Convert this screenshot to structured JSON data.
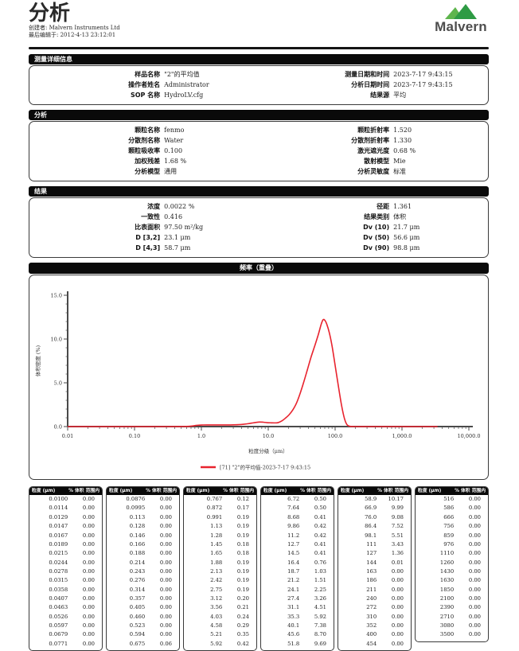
{
  "header": {
    "title": "分析",
    "created_label": "创建者:",
    "created_value": "Malvern Instruments Ltd",
    "edited_label": "最后编辑于:",
    "edited_value": "2012-4-13 23:12:01",
    "logo_text": "Malvern",
    "logo_green_light": "#5eb54d",
    "logo_green_dark": "#2e9b44"
  },
  "sections": [
    {
      "title": "测量详细信息",
      "rows": [
        {
          "l_label": "样品名称",
          "l_value": "\"2\"的平均值",
          "r_label": "测量日期和时间",
          "r_value": "2023-7-17 9:43:15"
        },
        {
          "l_label": "操作者姓名",
          "l_value": "Administrator",
          "r_label": "分析日期时间",
          "r_value": "2023-7-17 9:43:15"
        },
        {
          "l_label": "SOP 名称",
          "l_value": "HydroLV.cfg",
          "r_label": "结果源",
          "r_value": "平均"
        }
      ]
    },
    {
      "title": "分析",
      "rows": [
        {
          "l_label": "颗粒名称",
          "l_value": "fenmo",
          "r_label": "颗粒折射率",
          "r_value": "1.520"
        },
        {
          "l_label": "分散剂名称",
          "l_value": "Water",
          "r_label": "分散剂折射率",
          "r_value": "1.330"
        },
        {
          "l_label": "颗粒吸收率",
          "l_value": "0.100",
          "r_label": "激光遮光度",
          "r_value": "0.68 %"
        },
        {
          "l_label": "加权残差",
          "l_value": "1.68 %",
          "r_label": "散射模型",
          "r_value": "Mie"
        },
        {
          "l_label": "分析模型",
          "l_value": "通用",
          "r_label": "分析灵敏度",
          "r_value": "标准"
        }
      ]
    },
    {
      "title": "结果",
      "rows": [
        {
          "l_label": "浓度",
          "l_value": "0.0022 %",
          "r_label": "径距",
          "r_value": "1.361"
        },
        {
          "l_label": "一致性",
          "l_value": "0.416",
          "r_label": "结果类别",
          "r_value": "体积"
        },
        {
          "l_label": "比表面积",
          "l_value": "97.50 m²/kg",
          "r_label": "Dv (10)",
          "r_value": "21.7 μm"
        },
        {
          "l_label": "D [3,2]",
          "l_value": "23.1 μm",
          "r_label": "Dv (50)",
          "r_value": "56.6 μm"
        },
        {
          "l_label": "D [4,3]",
          "l_value": "58.7 μm",
          "r_label": "Dv (90)",
          "r_value": "98.8 μm"
        }
      ]
    }
  ],
  "chart_data": {
    "type": "line",
    "title": "频率（重叠）",
    "xlabel": "粒度分级（μm）",
    "ylabel": "体积密度 (%)",
    "x_scale": "log",
    "xlim": [
      0.01,
      10000
    ],
    "ylim": [
      0,
      15
    ],
    "grid": false,
    "legend_position": "bottom-center",
    "x_ticks": [
      {
        "v": 0.01,
        "label": "0.01"
      },
      {
        "v": 0.1,
        "label": "0.10"
      },
      {
        "v": 1,
        "label": "1.0"
      },
      {
        "v": 10,
        "label": "10.0"
      },
      {
        "v": 100,
        "label": "100.0"
      },
      {
        "v": 1000,
        "label": "1,000.0"
      },
      {
        "v": 10000,
        "label": "10,000.0"
      }
    ],
    "y_ticks": [
      {
        "v": 0,
        "label": "0.0"
      },
      {
        "v": 5,
        "label": "5.0"
      },
      {
        "v": 10,
        "label": "10.0"
      },
      {
        "v": 15,
        "label": "15.0"
      }
    ],
    "legend": "[71] \"2\"的平均值-2023-7-17 9:43:15",
    "line_color": "#e8232e",
    "series": [
      {
        "name": "\"2\"的平均值",
        "x": [
          0.01,
          0.1,
          0.3,
          0.5,
          0.6,
          0.7,
          0.8,
          0.9,
          1.0,
          1.2,
          1.5,
          1.9,
          2.4,
          3.0,
          3.6,
          4.3,
          5.0,
          5.7,
          6.5,
          7.4,
          8.4,
          9.5,
          11,
          12.5,
          14,
          16,
          18,
          20.5,
          23.5,
          26.5,
          30,
          34,
          38.5,
          43.5,
          49.5,
          56,
          62,
          66,
          70,
          75,
          82,
          90,
          100,
          112,
          125,
          138,
          148,
          158,
          170,
          185,
          200,
          500,
          1000,
          2000,
          3400
        ],
        "y": [
          0,
          0,
          0,
          0.01,
          0.02,
          0.05,
          0.11,
          0.16,
          0.18,
          0.19,
          0.19,
          0.19,
          0.19,
          0.2,
          0.22,
          0.27,
          0.33,
          0.4,
          0.47,
          0.52,
          0.5,
          0.45,
          0.43,
          0.42,
          0.45,
          0.65,
          0.95,
          1.35,
          1.95,
          2.7,
          3.8,
          5.1,
          6.5,
          7.9,
          9.2,
          10.5,
          11.7,
          12.2,
          12.15,
          11.7,
          10.7,
          9.2,
          7.0,
          4.6,
          2.4,
          0.9,
          0.3,
          0.08,
          0.02,
          0.01,
          0,
          0,
          0,
          0,
          0
        ]
      }
    ]
  },
  "tables": {
    "header_left": "粒度 (μm)",
    "header_right": "% 体积 范围内",
    "columns": [
      {
        "rows": [
          [
            "0.0100",
            "0.00"
          ],
          [
            "0.0114",
            "0.00"
          ],
          [
            "0.0129",
            "0.00"
          ],
          [
            "0.0147",
            "0.00"
          ],
          [
            "0.0167",
            "0.00"
          ],
          [
            "0.0189",
            "0.00"
          ],
          [
            "0.0215",
            "0.00"
          ],
          [
            "0.0244",
            "0.00"
          ],
          [
            "0.0278",
            "0.00"
          ],
          [
            "0.0315",
            "0.00"
          ],
          [
            "0.0358",
            "0.00"
          ],
          [
            "0.0407",
            "0.00"
          ],
          [
            "0.0463",
            "0.00"
          ],
          [
            "0.0526",
            "0.00"
          ],
          [
            "0.0597",
            "0.00"
          ],
          [
            "0.0679",
            "0.00"
          ],
          [
            "0.0771",
            "0.00"
          ]
        ]
      },
      {
        "rows": [
          [
            "0.0876",
            "0.00"
          ],
          [
            "0.0995",
            "0.00"
          ],
          [
            "0.113",
            "0.00"
          ],
          [
            "0.128",
            "0.00"
          ],
          [
            "0.146",
            "0.00"
          ],
          [
            "0.166",
            "0.00"
          ],
          [
            "0.188",
            "0.00"
          ],
          [
            "0.214",
            "0.00"
          ],
          [
            "0.243",
            "0.00"
          ],
          [
            "0.276",
            "0.00"
          ],
          [
            "0.314",
            "0.00"
          ],
          [
            "0.357",
            "0.00"
          ],
          [
            "0.405",
            "0.00"
          ],
          [
            "0.460",
            "0.00"
          ],
          [
            "0.523",
            "0.00"
          ],
          [
            "0.594",
            "0.00"
          ],
          [
            "0.675",
            "0.06"
          ]
        ]
      },
      {
        "rows": [
          [
            "0.767",
            "0.12"
          ],
          [
            "0.872",
            "0.17"
          ],
          [
            "0.991",
            "0.19"
          ],
          [
            "1.13",
            "0.19"
          ],
          [
            "1.28",
            "0.19"
          ],
          [
            "1.45",
            "0.18"
          ],
          [
            "1.65",
            "0.18"
          ],
          [
            "1.88",
            "0.19"
          ],
          [
            "2.13",
            "0.19"
          ],
          [
            "2.42",
            "0.19"
          ],
          [
            "2.75",
            "0.19"
          ],
          [
            "3.12",
            "0.20"
          ],
          [
            "3.56",
            "0.21"
          ],
          [
            "4.03",
            "0.24"
          ],
          [
            "4.58",
            "0.29"
          ],
          [
            "5.21",
            "0.35"
          ],
          [
            "5.92",
            "0.42"
          ]
        ]
      },
      {
        "rows": [
          [
            "6.72",
            "0.50"
          ],
          [
            "7.64",
            "0.50"
          ],
          [
            "8.68",
            "0.41"
          ],
          [
            "9.86",
            "0.42"
          ],
          [
            "11.2",
            "0.42"
          ],
          [
            "12.7",
            "0.41"
          ],
          [
            "14.5",
            "0.41"
          ],
          [
            "16.4",
            "0.76"
          ],
          [
            "18.7",
            "1.03"
          ],
          [
            "21.2",
            "1.51"
          ],
          [
            "24.1",
            "2.25"
          ],
          [
            "27.4",
            "3.26"
          ],
          [
            "31.1",
            "4.51"
          ],
          [
            "35.3",
            "5.92"
          ],
          [
            "40.1",
            "7.38"
          ],
          [
            "45.6",
            "8.70"
          ],
          [
            "51.8",
            "9.69"
          ]
        ]
      },
      {
        "rows": [
          [
            "58.9",
            "10.17"
          ],
          [
            "66.9",
            "9.99"
          ],
          [
            "76.0",
            "9.08"
          ],
          [
            "86.4",
            "7.52"
          ],
          [
            "98.1",
            "5.51"
          ],
          [
            "111",
            "3.43"
          ],
          [
            "127",
            "1.36"
          ],
          [
            "144",
            "0.01"
          ],
          [
            "163",
            "0.00"
          ],
          [
            "186",
            "0.00"
          ],
          [
            "211",
            "0.00"
          ],
          [
            "240",
            "0.00"
          ],
          [
            "272",
            "0.00"
          ],
          [
            "310",
            "0.00"
          ],
          [
            "352",
            "0.00"
          ],
          [
            "400",
            "0.00"
          ],
          [
            "454",
            "0.00"
          ]
        ]
      },
      {
        "rows": [
          [
            "516",
            "0.00"
          ],
          [
            "586",
            "0.00"
          ],
          [
            "666",
            "0.00"
          ],
          [
            "756",
            "0.00"
          ],
          [
            "859",
            "0.00"
          ],
          [
            "976",
            "0.00"
          ],
          [
            "1110",
            "0.00"
          ],
          [
            "1260",
            "0.00"
          ],
          [
            "1430",
            "0.00"
          ],
          [
            "1630",
            "0.00"
          ],
          [
            "1850",
            "0.00"
          ],
          [
            "2100",
            "0.00"
          ],
          [
            "2390",
            "0.00"
          ],
          [
            "2710",
            "0.00"
          ],
          [
            "3080",
            "0.00"
          ],
          [
            "3500",
            "0.00"
          ]
        ]
      }
    ]
  }
}
